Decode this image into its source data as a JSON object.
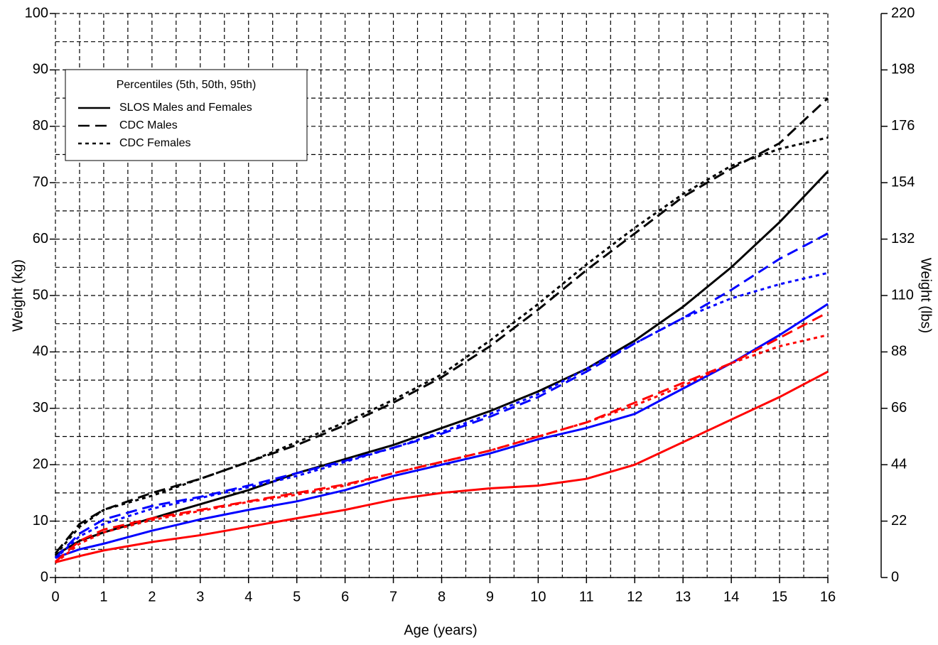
{
  "chart_data": {
    "type": "line",
    "xlabel": "Age (years)",
    "ylabel": "Weight (kg)",
    "y2label": "Weight (lbs)",
    "xlim": [
      0,
      16
    ],
    "xticks": [
      0,
      1,
      2,
      3,
      4,
      5,
      6,
      7,
      8,
      9,
      10,
      11,
      12,
      13,
      14,
      15,
      16
    ],
    "ylim": [
      0,
      100
    ],
    "yticks": [
      0,
      10,
      20,
      30,
      40,
      50,
      60,
      70,
      80,
      90,
      100
    ],
    "y2lim": [
      0,
      220
    ],
    "y2ticks": [
      0,
      22,
      44,
      66,
      88,
      110,
      132,
      154,
      176,
      198,
      220
    ],
    "grid": true,
    "xgrid": [
      0,
      0.5,
      1,
      1.5,
      2,
      2.5,
      3,
      3.5,
      4,
      4.5,
      5,
      5.5,
      6,
      6.5,
      7,
      7.5,
      8,
      8.5,
      9,
      9.5,
      10,
      10.5,
      11,
      11.5,
      12,
      12.5,
      13,
      13.5,
      14,
      14.5,
      15,
      15.5,
      16
    ],
    "ygrid": [
      0,
      5,
      10,
      15,
      20,
      25,
      30,
      35,
      40,
      45,
      50,
      55,
      60,
      65,
      70,
      75,
      80,
      85,
      90,
      95,
      100
    ],
    "legend": {
      "title": "Percentiles (5th, 50th, 95th)",
      "corner": "upper left",
      "color": "#000000",
      "entries": [
        {
          "name": "SLOS Males and Females",
          "style": "solid"
        },
        {
          "name": "CDC Males",
          "style": "dashed"
        },
        {
          "name": "CDC Females",
          "style": "dotted"
        }
      ]
    },
    "x": [
      0,
      0.5,
      1,
      2,
      3,
      4,
      5,
      6,
      7,
      8,
      9,
      10,
      11,
      12,
      13,
      14,
      15,
      16
    ],
    "series": [
      {
        "color": "#000000",
        "style": "solid",
        "values": [
          4,
          6.5,
          8,
          10.5,
          13,
          15.5,
          18.5,
          21,
          23.5,
          26.5,
          29.5,
          33,
          37,
          42,
          48,
          55,
          63,
          72
        ]
      },
      {
        "color": "#0000ff",
        "style": "solid",
        "values": [
          3.5,
          5,
          6,
          8.3,
          10.3,
          12,
          13.5,
          15.5,
          18,
          20,
          22,
          24.5,
          26.5,
          29,
          33.5,
          38,
          43,
          48.5
        ]
      },
      {
        "color": "#ff0000",
        "style": "solid",
        "values": [
          2.7,
          3.8,
          4.8,
          6.3,
          7.5,
          9,
          10.5,
          12,
          13.8,
          15,
          15.8,
          16.3,
          17.5,
          20,
          24,
          28,
          32,
          36.5
        ]
      },
      {
        "color": "#000000",
        "style": "dashed",
        "values": [
          4.3,
          9.5,
          12,
          15,
          17.5,
          20.5,
          23.5,
          27,
          31,
          35.5,
          41,
          47.5,
          54.5,
          61,
          67.5,
          72.5,
          77,
          85
        ]
      },
      {
        "color": "#0000ff",
        "style": "dashed",
        "values": [
          3.5,
          7.8,
          10.3,
          12.7,
          14.3,
          16.3,
          18.5,
          20.7,
          23,
          25.5,
          28.5,
          32,
          36.5,
          41.5,
          46,
          51,
          56.5,
          61
        ]
      },
      {
        "color": "#ff0000",
        "style": "dashed",
        "values": [
          2.8,
          6.5,
          8.5,
          10.5,
          12,
          13.5,
          15,
          16.5,
          18.5,
          20.5,
          22.5,
          25,
          27.5,
          31,
          34.5,
          38,
          42.5,
          47
        ]
      },
      {
        "color": "#000000",
        "style": "dotted",
        "values": [
          4,
          9,
          12,
          14.5,
          17.5,
          20.5,
          24,
          27.5,
          31.5,
          36,
          42,
          48.5,
          55.5,
          62,
          68,
          73,
          76,
          78
        ]
      },
      {
        "color": "#0000ff",
        "style": "dotted",
        "values": [
          3.4,
          7.3,
          9.5,
          12.2,
          14.1,
          16,
          18,
          20.5,
          23,
          25.8,
          29,
          32.5,
          37,
          41.5,
          46,
          49.5,
          52,
          54
        ]
      },
      {
        "color": "#ff0000",
        "style": "dotted",
        "values": [
          2.6,
          6,
          8,
          10.2,
          11.8,
          13.4,
          14.7,
          16.3,
          18.5,
          20.5,
          22.5,
          25,
          27.5,
          30.5,
          34,
          38,
          41,
          43
        ]
      }
    ]
  }
}
